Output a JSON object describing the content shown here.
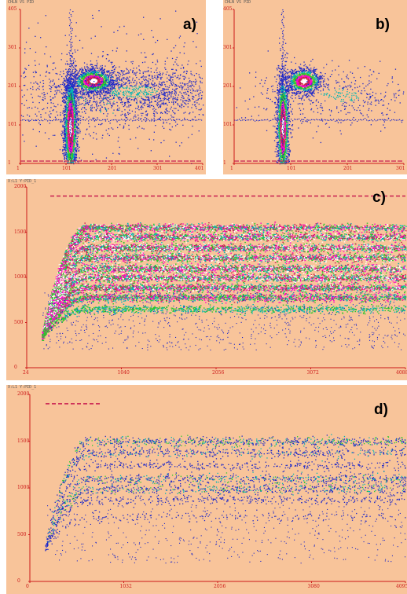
{
  "panels": [
    {
      "id": "a",
      "label": "a)",
      "title": "CHLN VS PID"
    },
    {
      "id": "b",
      "label": "b)",
      "title": "CHLN VS PID"
    },
    {
      "id": "c",
      "label": "c)",
      "title": "X:L1 Y:PID_1"
    },
    {
      "id": "d",
      "label": "d)",
      "title": "X:L1 Y:PID_1"
    }
  ],
  "colors": {
    "background": "#f8c49a",
    "axis": "#cc1a1a",
    "density_levels": [
      "#1e28c8",
      "#00b4b4",
      "#28c828",
      "#ff00c8",
      "#c81e50",
      "#ffffff"
    ]
  },
  "chart_data": [
    {
      "type": "heatmap",
      "panel": "a",
      "x_ticks": [
        "1",
        "101",
        "201",
        "301",
        "401"
      ],
      "y_ticks": [
        "405",
        "301",
        "201",
        "101",
        "1"
      ],
      "xlim": [
        1,
        401
      ],
      "ylim": [
        1,
        405
      ],
      "clusters": [
        {
          "x": 110,
          "y": 96,
          "sx": 7,
          "sy": 70,
          "n": 2600,
          "dense": true
        },
        {
          "x": 160,
          "y": 218,
          "sx": 22,
          "sy": 16,
          "n": 1400,
          "dense": true
        },
        {
          "x": 250,
          "y": 190,
          "sx": 120,
          "sy": 35,
          "n": 1600,
          "dense": false
        },
        {
          "x": 200,
          "y": 180,
          "sx": 160,
          "sy": 110,
          "n": 500,
          "dense": false
        }
      ]
    },
    {
      "type": "heatmap",
      "panel": "b",
      "x_ticks": [
        "1",
        "101",
        "201",
        "301"
      ],
      "y_ticks": [
        "405",
        "301",
        "201",
        "101",
        "1"
      ],
      "xlim": [
        1,
        401
      ],
      "ylim": [
        1,
        405
      ],
      "clusters": [
        {
          "x": 115,
          "y": 96,
          "sx": 7,
          "sy": 70,
          "n": 2000,
          "dense": true
        },
        {
          "x": 165,
          "y": 218,
          "sx": 20,
          "sy": 16,
          "n": 1100,
          "dense": true
        },
        {
          "x": 250,
          "y": 180,
          "sx": 110,
          "sy": 40,
          "n": 500,
          "dense": false
        }
      ]
    },
    {
      "type": "heatmap",
      "panel": "c",
      "x_ticks": [
        "24",
        "1040",
        "2056",
        "3072",
        "4088"
      ],
      "y_ticks": [
        "2000",
        "1500",
        "1000",
        "500",
        "0"
      ],
      "xlim": [
        24,
        4088
      ],
      "ylim": [
        0,
        2000
      ],
      "bands": [
        {
          "y": 1550,
          "intensity": 0.9
        },
        {
          "y": 1450,
          "intensity": 1.0
        },
        {
          "y": 1330,
          "intensity": 1.0
        },
        {
          "y": 1220,
          "intensity": 0.95
        },
        {
          "y": 1100,
          "intensity": 1.0
        },
        {
          "y": 1000,
          "intensity": 1.0
        },
        {
          "y": 890,
          "intensity": 0.9
        },
        {
          "y": 780,
          "intensity": 0.7
        },
        {
          "y": 650,
          "intensity": 0.4
        }
      ]
    },
    {
      "type": "heatmap",
      "panel": "d",
      "x_ticks": [
        "0",
        "1032",
        "2056",
        "3080",
        "4095"
      ],
      "y_ticks": [
        "2000",
        "1500",
        "1000",
        "500",
        "0"
      ],
      "xlim": [
        0,
        4095
      ],
      "ylim": [
        0,
        2000
      ],
      "bands": [
        {
          "y": 1500,
          "intensity": 0.7
        },
        {
          "y": 1380,
          "intensity": 0.5
        },
        {
          "y": 1240,
          "intensity": 0.35
        },
        {
          "y": 1100,
          "intensity": 0.6
        },
        {
          "y": 990,
          "intensity": 0.6
        },
        {
          "y": 880,
          "intensity": 0.35
        },
        {
          "y": 700,
          "intensity": 0.15
        }
      ]
    }
  ]
}
